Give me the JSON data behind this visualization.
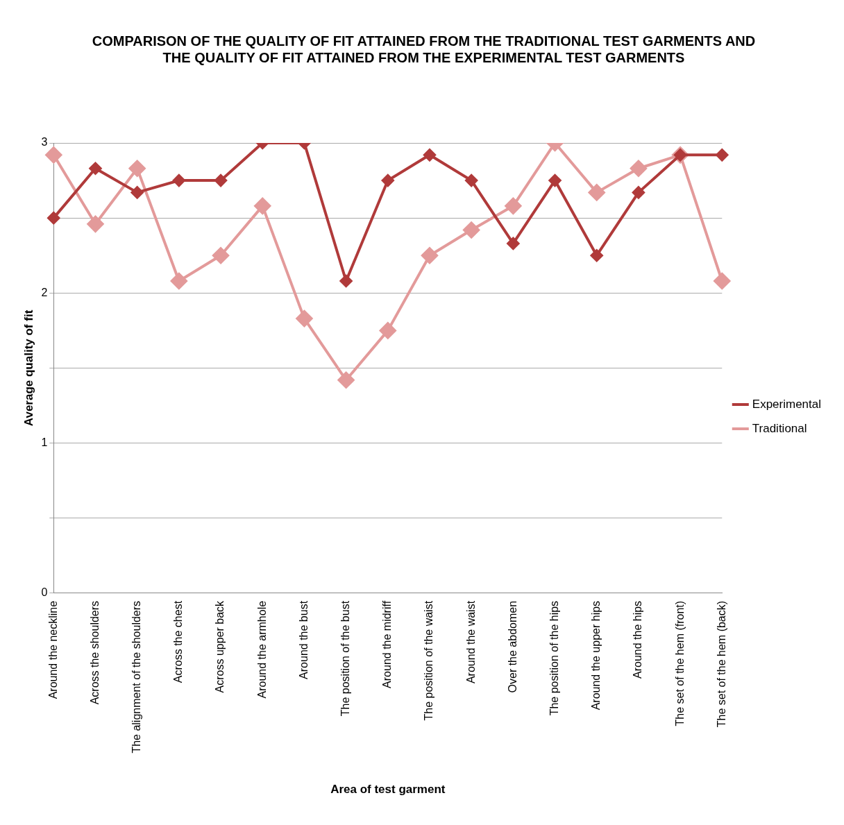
{
  "chart_data": {
    "type": "line",
    "title": "COMPARISON OF THE QUALITY OF FIT ATTAINED FROM THE TRADITIONAL TEST GARMENTS AND THE QUALITY OF FIT ATTAINED FROM THE EXPERIMENTAL TEST GARMENTS",
    "xlabel": "Area of test garment",
    "ylabel": "Average quality of fit",
    "categories": [
      "Around the neckline",
      "Across the shoulders",
      "The alignment of the shoulders",
      "Across the chest",
      "Across upper back",
      "Around the armhole",
      "Around the bust",
      "The position of the bust",
      "Around the midriff",
      "The position of the waist",
      "Around the waist",
      "Over the abdomen",
      "The position of the hips",
      "Around the upper hips",
      "Around the hips",
      "The set of the hem (front)",
      "The set of the hem (back)"
    ],
    "series": [
      {
        "name": "Experimental",
        "color": "#b03a3a",
        "values": [
          2.5,
          2.83,
          2.67,
          2.75,
          2.75,
          3,
          3,
          2.08,
          2.75,
          2.92,
          2.75,
          2.33,
          2.75,
          2.25,
          2.67,
          2.92,
          2.92
        ]
      },
      {
        "name": "Traditional",
        "color": "#e39a9a",
        "values": [
          2.92,
          2.46,
          2.83,
          2.08,
          2.25,
          2.58,
          1.83,
          1.42,
          1.75,
          2.25,
          2.42,
          2.58,
          3,
          2.67,
          2.83,
          2.92,
          2.08
        ]
      }
    ],
    "ylim": [
      0,
      3
    ],
    "yticks": [
      0,
      {
        "value": 0.5,
        "label": null
      },
      1,
      {
        "value": 1.5,
        "label": null
      },
      2,
      {
        "value": 2.5,
        "label": null
      },
      3
    ],
    "grid": "y",
    "legend": "right",
    "marker": "diamond",
    "line_style": "solid"
  }
}
